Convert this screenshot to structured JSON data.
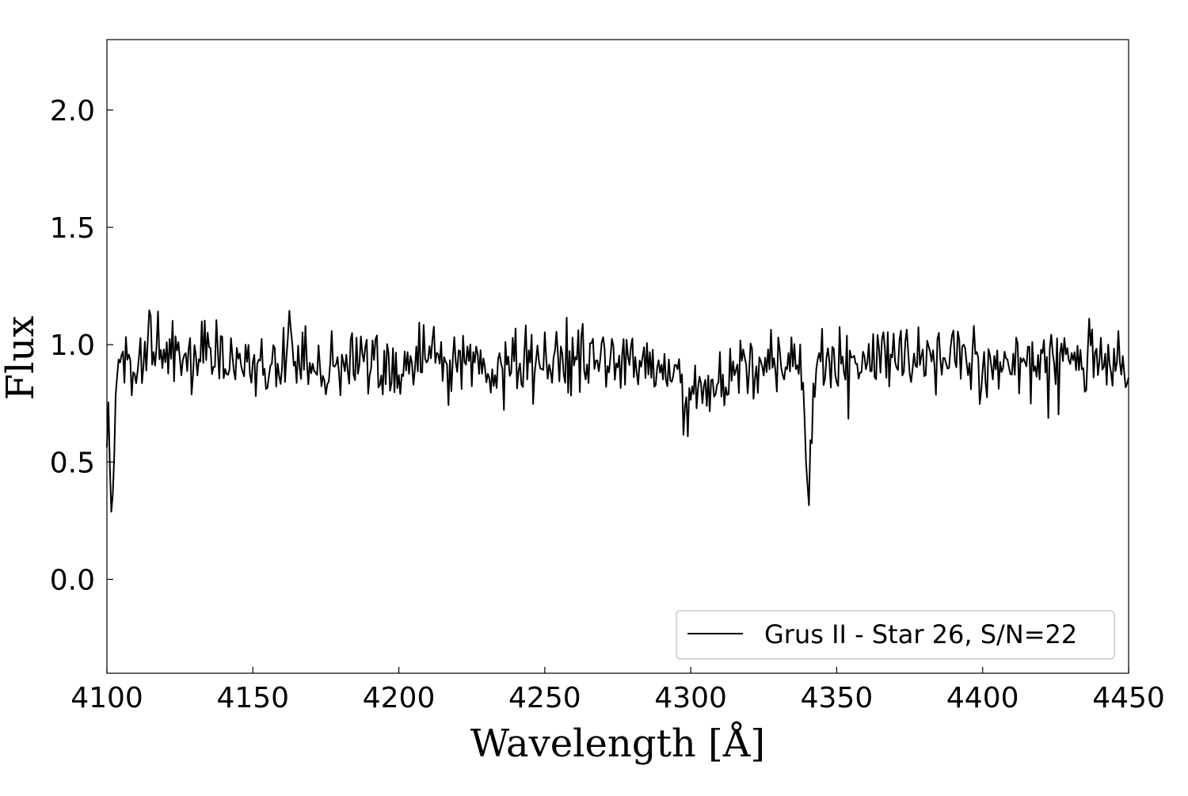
{
  "chart_data": {
    "type": "line",
    "xlabel": "Wavelength [Å]",
    "ylabel": "Flux",
    "xlim": [
      4100,
      4450
    ],
    "ylim": [
      -0.4,
      2.3
    ],
    "x_ticks": [
      4100,
      4150,
      4200,
      4250,
      4300,
      4350,
      4400,
      4450
    ],
    "x_tick_labels": [
      "4100",
      "4150",
      "4200",
      "4250",
      "4300",
      "4350",
      "4400",
      "4450"
    ],
    "y_ticks": [
      0.0,
      0.5,
      1.0,
      1.5,
      2.0
    ],
    "y_tick_labels": [
      "0.0",
      "0.5",
      "1.0",
      "1.5",
      "2.0"
    ],
    "grid": false,
    "legend_position": "bottom-right",
    "line_color": "#000000",
    "series": [
      {
        "name": "Grus II - Star 26, S/N=22",
        "x_start": 4100,
        "x_step": 0.5,
        "noise_sigma": 0.075,
        "features": [
          {
            "center": 4101.7,
            "depth": 0.58,
            "width": 0.9
          },
          {
            "center": 4114.5,
            "depth": -0.28,
            "width": 0.4
          },
          {
            "center": 4303.0,
            "depth": 0.14,
            "width": 9.0
          },
          {
            "center": 4340.4,
            "depth": 0.56,
            "width": 0.9
          }
        ],
        "continuum": 0.93
      }
    ]
  }
}
